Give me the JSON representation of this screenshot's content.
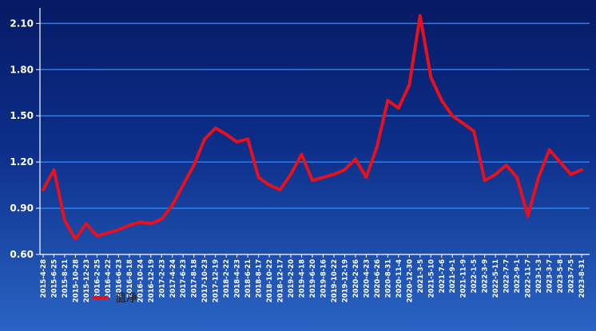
{
  "chart_data": {
    "type": "line",
    "title": "",
    "xlabel": "",
    "ylabel": "",
    "ylim": [
      0.6,
      2.2
    ],
    "yticks": [
      "0.60",
      "0.90",
      "1.20",
      "1.50",
      "1.80",
      "2.10"
    ],
    "grid": true,
    "legend_position": "bottom-left",
    "colors": {
      "line": "#e8101c",
      "grid": "#1f8cff",
      "axis": "#ffffff",
      "text": "#ffffff",
      "legend_text": "#1a1a1a"
    },
    "x": [
      "2015-4-28",
      "2015-6-25",
      "2015-8-21",
      "2015-10-28",
      "2015-12-23",
      "2016-2-25",
      "2016-4-22",
      "2016-6-23",
      "2016-8-18",
      "2016-10-24",
      "2016-12-19",
      "2017-2-23",
      "2017-4-24",
      "2017-6-23",
      "2017-8-18",
      "2017-10-23",
      "2017-12-19",
      "2018-2-22",
      "2018-4-23",
      "2018-6-21",
      "2018-8-17",
      "2018-10-22",
      "2018-12-17",
      "2019-2-20",
      "2019-4-18",
      "2019-6-20",
      "2019-8-16",
      "2019-10-22",
      "2019-12-19",
      "2020-2-26",
      "2020-4-23",
      "2020-6-26",
      "2020-8-31",
      "2020-11-4",
      "2020-12-30",
      "2021-3-5",
      "2021-5-10",
      "2021-7-6",
      "2021-9-1",
      "2021-11-9",
      "2022-1-5",
      "2022-3-9",
      "2022-5-11",
      "2022-7-7",
      "2022-9-1",
      "2022-11-7",
      "2023-1-3",
      "2023-3-7",
      "2023-5-8",
      "2023-7-5",
      "2023-8-31"
    ],
    "series": [
      {
        "name": "值净",
        "values": [
          1.02,
          1.15,
          0.82,
          0.7,
          0.8,
          0.72,
          0.74,
          0.76,
          0.79,
          0.81,
          0.8,
          0.83,
          0.92,
          1.05,
          1.18,
          1.35,
          1.42,
          1.38,
          1.33,
          1.35,
          1.1,
          1.05,
          1.02,
          1.12,
          1.25,
          1.08,
          1.1,
          1.12,
          1.15,
          1.22,
          1.1,
          1.3,
          1.6,
          1.55,
          1.7,
          2.15,
          1.75,
          1.6,
          1.5,
          1.45,
          1.4,
          1.08,
          1.12,
          1.18,
          1.1,
          0.85,
          1.1,
          1.28,
          1.2,
          1.12,
          1.15
        ]
      }
    ]
  },
  "legend": {
    "label": "值净"
  }
}
